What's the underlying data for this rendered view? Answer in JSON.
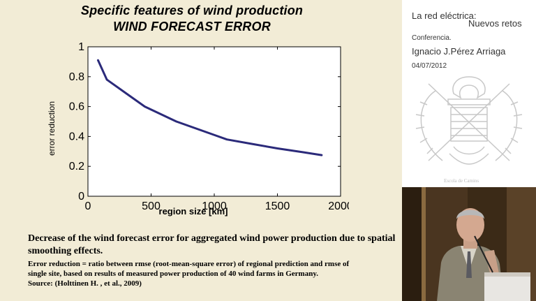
{
  "slide": {
    "title_line1": "Specific features of  wind production",
    "title_line2": "WIND FORECAST ERROR",
    "caption_main": "Decrease of the wind forecast error for aggregated wind power production due to spatial smoothing effects.",
    "caption_detail_line1": "Error reduction = ratio between rmse (root-mean-square error) of regional prediction and rmse of",
    "caption_detail_line2": "single site, based on results of measured power production of 40 wind farms in Germany.",
    "source": "Source: (Holttinen H. , et al., 2009)"
  },
  "chart_data": {
    "type": "line",
    "title": "",
    "xlabel": "region size [km]",
    "ylabel": "error reduction",
    "xlim": [
      0,
      2000
    ],
    "ylim": [
      0,
      1
    ],
    "xticks": [
      0,
      500,
      1000,
      1500,
      2000
    ],
    "yticks": [
      0,
      0.2,
      0.4,
      0.6,
      0.8,
      1
    ],
    "ytick_labels": [
      "0",
      "0.2",
      "0.4",
      "0.6",
      "0.8",
      "1"
    ],
    "grid": false,
    "series": [
      {
        "color": "#2b2a7a",
        "x": [
          80,
          150,
          300,
          450,
          700,
          1000,
          1100,
          1300,
          1500,
          1700,
          1850
        ],
        "y": [
          0.91,
          0.78,
          0.69,
          0.6,
          0.5,
          0.41,
          0.38,
          0.35,
          0.32,
          0.295,
          0.275
        ]
      }
    ]
  },
  "sidebar": {
    "title_line1": "La red eléctrica:",
    "title_line2": "Nuevos retos",
    "type": "Conferencia.",
    "speaker": "Ignacio J.Pérez Arriaga",
    "date": "04/07/2012",
    "logo_icon": "escuela-caminos-emblem-icon",
    "logo_caption": "Escola de Camins"
  },
  "video": {
    "icon": "speaker-video-icon",
    "background_color": "#3a2a18"
  }
}
